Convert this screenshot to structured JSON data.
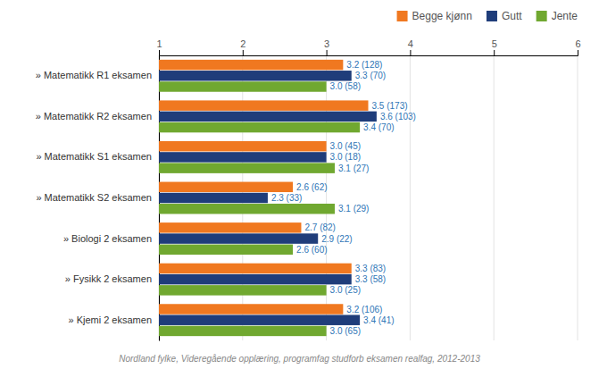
{
  "chart_data": {
    "type": "bar",
    "orientation": "horizontal",
    "categories": [
      "» Matematikk R1 eksamen",
      "» Matematikk R2 eksamen",
      "» Matematikk S1 eksamen",
      "» Matematikk S2 eksamen",
      "» Biologi 2 eksamen",
      "» Fysikk 2 eksamen",
      "» Kjemi 2 eksamen"
    ],
    "series": [
      {
        "name": "Begge kjønn",
        "color": "#f07820",
        "values": [
          3.2,
          3.5,
          3.0,
          2.6,
          2.7,
          3.3,
          3.2
        ],
        "value_labels": [
          "3.2 (128)",
          "3.5 (173)",
          "3.0 (45)",
          "2.6 (62)",
          "2.7 (82)",
          "3.3 (83)",
          "3.2 (106)"
        ]
      },
      {
        "name": "Gutt",
        "color": "#1f3d7a",
        "values": [
          3.3,
          3.6,
          3.0,
          2.3,
          2.9,
          3.3,
          3.4
        ],
        "value_labels": [
          "3.3 (70)",
          "3.6 (103)",
          "3.0 (18)",
          "2.3 (33)",
          "2.9 (22)",
          "3.3 (58)",
          "3.4 (41)"
        ]
      },
      {
        "name": "Jente",
        "color": "#70a830",
        "values": [
          3.0,
          3.4,
          3.1,
          3.1,
          2.6,
          3.0,
          3.0
        ],
        "value_labels": [
          "3.0 (58)",
          "3.4 (70)",
          "3.1 (27)",
          "3.1 (29)",
          "2.6 (60)",
          "3.0 (25)",
          "3.0 (65)"
        ]
      }
    ],
    "xlim": [
      1,
      6
    ],
    "xticks": [
      1,
      2,
      3,
      4,
      5,
      6
    ],
    "grid": true,
    "legend": "top-right",
    "data_labels": true,
    "tick_labels": "x",
    "annotations": [
      "Nordland fylke, Videregående opplæring, programfag studforb eksamen realfag, 2012-2013"
    ]
  }
}
